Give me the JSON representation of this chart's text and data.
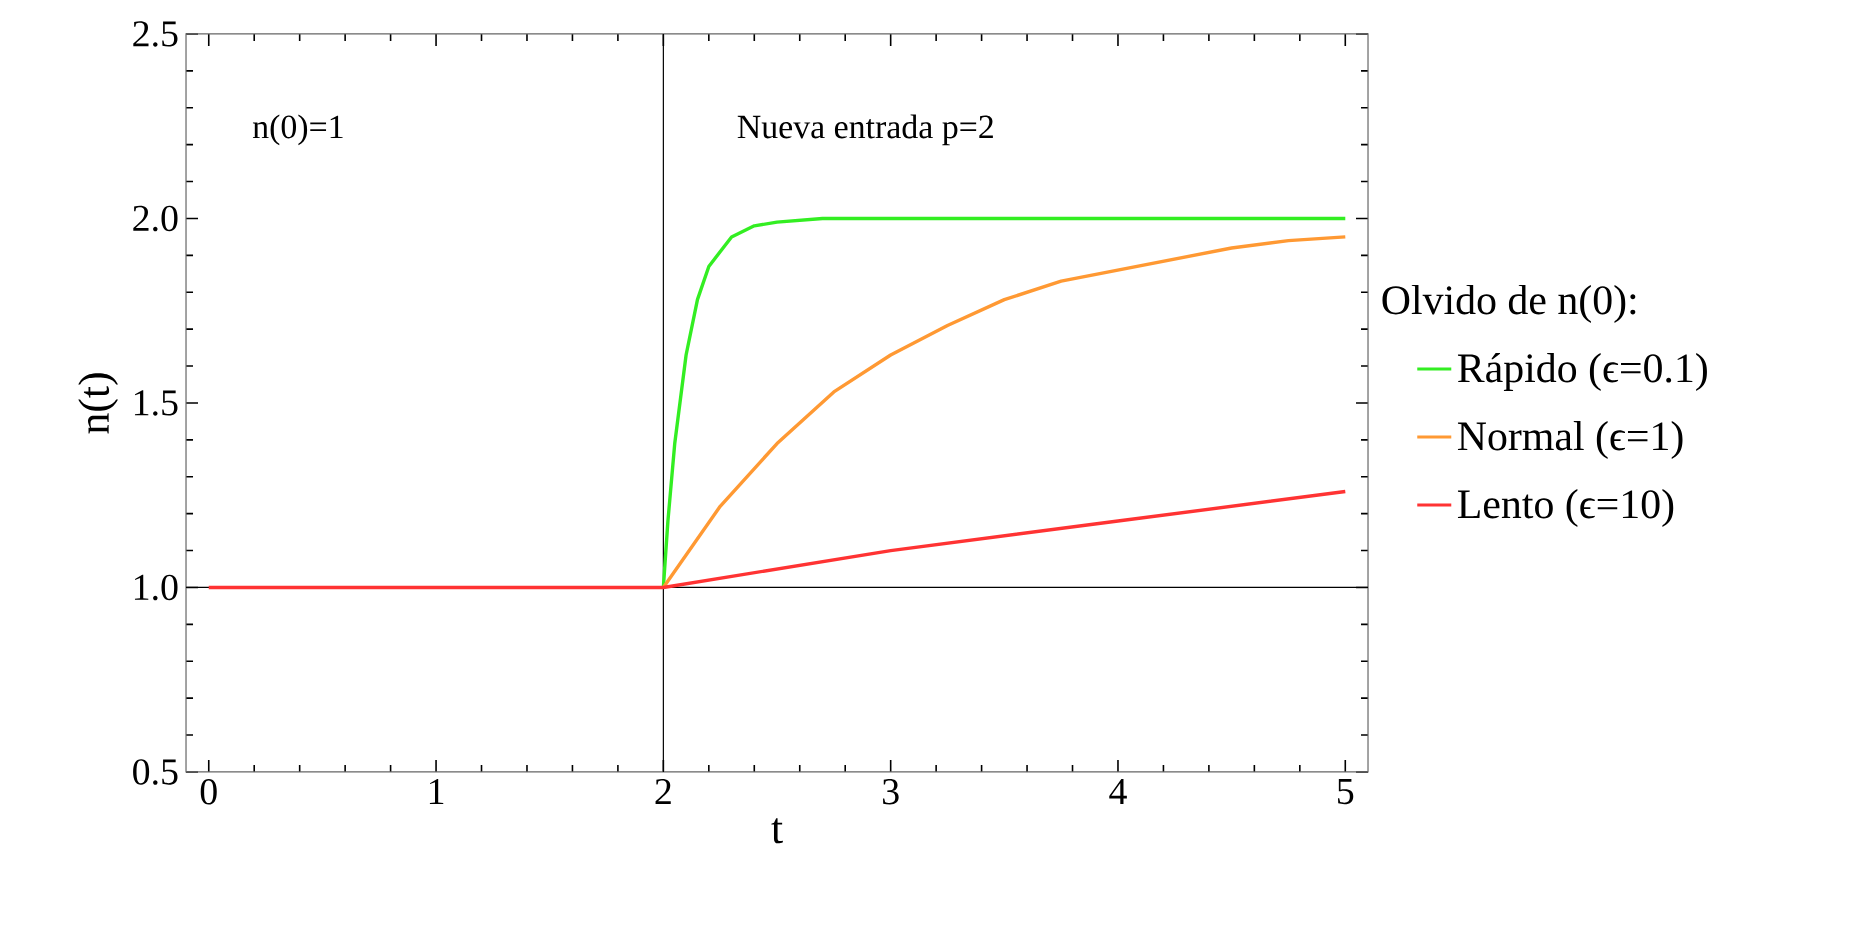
{
  "chart_data": {
    "type": "line",
    "xlabel": "t",
    "ylabel": "n(t)",
    "legend_title": "Olvido de n(0):",
    "annotations": [
      "n(0)=1",
      "Nueva entrada p=2"
    ],
    "xlim": [
      -0.1,
      5.1
    ],
    "ylim": [
      0.5,
      2.5
    ],
    "xticks": [
      0,
      1,
      2,
      3,
      4,
      5
    ],
    "yticks": [
      0.5,
      {
        "value": 1,
        "label": "1.0"
      },
      1.5,
      {
        "value": 2,
        "label": "2.0"
      },
      2.5
    ],
    "ref_lines": [
      {
        "axis": "x",
        "value": 2,
        "color": "#000000"
      },
      {
        "axis": "y",
        "value": 1,
        "color": "#000000"
      }
    ],
    "legend": "right",
    "marker": "none",
    "line_style": "solid",
    "series": [
      {
        "name": "Rápido (ϵ=0.1)",
        "color": "#33ee22",
        "x": [
          2,
          2.02,
          2.05,
          2.1,
          2.15,
          2.2,
          2.3,
          2.4,
          2.5,
          2.7,
          3,
          4,
          5
        ],
        "values": [
          1,
          1.18,
          1.39,
          1.63,
          1.78,
          1.87,
          1.95,
          1.98,
          1.99,
          2,
          2,
          2,
          2
        ]
      },
      {
        "name": "Normal (ϵ=1)",
        "color": "#ff9933",
        "x": [
          2,
          2.25,
          2.5,
          2.75,
          3,
          3.25,
          3.5,
          3.75,
          4,
          4.25,
          4.5,
          4.75,
          5
        ],
        "values": [
          1,
          1.22,
          1.39,
          1.53,
          1.63,
          1.71,
          1.78,
          1.83,
          1.86,
          1.89,
          1.92,
          1.94,
          1.95
        ]
      },
      {
        "name": "Lento (ϵ=10)",
        "color": "#ff3333",
        "x": [
          0,
          2,
          3,
          4,
          5
        ],
        "values": [
          1,
          1,
          1.1,
          1.18,
          1.26
        ]
      }
    ]
  }
}
